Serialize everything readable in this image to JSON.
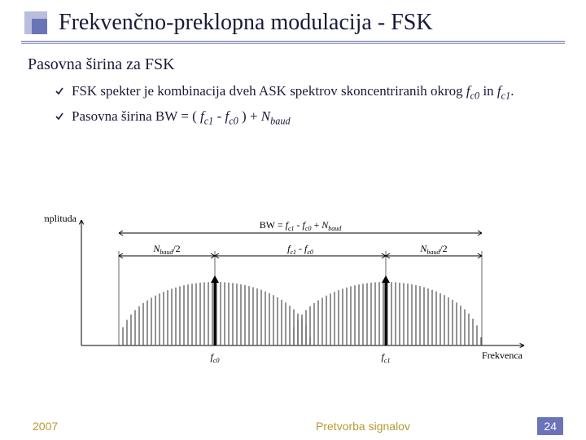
{
  "title": "Frekvenčno-preklopna modulacija - FSK",
  "subtitle": "Pasovna širina za FSK",
  "bullets": {
    "b1": {
      "pre": "FSK spekter je kombinacija dveh ASK spektrov skoncentriranih okrog ",
      "f": "f",
      "c0": "c0",
      "mid": " in ",
      "c1": "c1",
      "post": "."
    },
    "b2": {
      "pre": "Pasovna širina BW = ( ",
      "f": "f",
      "c1": "c1",
      "minus": " - ",
      "c0": "c0",
      "paren": " ) + ",
      "N": "N",
      "baud": "baud"
    }
  },
  "figure": {
    "ylabel": "Amplituda",
    "xlabel": "Frekvenca",
    "bw_formula": "BW = f_{c1} - f_{c0} + N_{baud}",
    "nband_half_l": "N_{baud}/2",
    "nband_half_r": "N_{baud}/2",
    "center_gap": "f_{c1} - f_{c0}",
    "fc0": "f_{c0}",
    "fc1": "f_{c1}",
    "colors": {
      "axis": "#000000",
      "bars": "#666666",
      "arrow": "#000000",
      "text": "#000000"
    },
    "geom": {
      "originX": 46,
      "originY": 174,
      "axisTop": 20,
      "axisRight": 590,
      "fc0X": 210,
      "fc1X": 420,
      "humpHalf": 118,
      "humpTop": 96,
      "dimY1": 64,
      "dimY2": 86,
      "bwY": 36
    }
  },
  "footer": {
    "year": "2007",
    "center": "Pretvorba signalov",
    "slide": "24"
  },
  "accent": {
    "light": "#b9bedd",
    "dark": "#6b74b8"
  }
}
